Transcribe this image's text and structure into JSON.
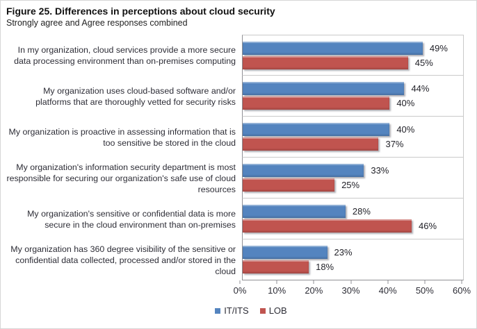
{
  "title": "Figure 25. Differences in perceptions about cloud security",
  "subtitle": "Strongly agree and Agree responses combined",
  "colors": {
    "it_its_bar": "#5484BF",
    "lob_bar": "#C0544F",
    "axis_line": "#8f8f94",
    "grid_divider": "#c9c9c9",
    "text": "#2d2d36"
  },
  "chart_data": {
    "type": "bar",
    "orientation": "horizontal",
    "title": "Figure 25. Differences in perceptions about cloud security",
    "subtitle": "Strongly agree and Agree responses combined",
    "categories": [
      "In my organization, cloud services provide a more secure data processing environment than on-premises computing",
      "My organization uses cloud-based software and/or platforms that are thoroughly vetted for security risks",
      "My organization is proactive in assessing information that is too sensitive be stored in the cloud",
      "My organization's information security department is most responsible for securing our organization's safe use of cloud resources",
      "My organization's sensitive or confidential data is more secure in the cloud environment than on-premises",
      "My organization has 360 degree visibility of the sensitive or confidential data collected, processed and/or stored in the cloud"
    ],
    "series": [
      {
        "name": "IT/ITS",
        "color": "#5484BF",
        "values": [
          49,
          44,
          40,
          33,
          28,
          23
        ],
        "labels": [
          "49%",
          "44%",
          "40%",
          "33%",
          "28%",
          "23%"
        ]
      },
      {
        "name": "LOB",
        "color": "#C0544F",
        "values": [
          45,
          40,
          37,
          25,
          46,
          18
        ],
        "labels": [
          "45%",
          "40%",
          "37%",
          "25%",
          "46%",
          "18%"
        ]
      }
    ],
    "xlim": [
      0,
      60
    ],
    "x_ticks": [
      "0%",
      "10%",
      "20%",
      "30%",
      "40%",
      "50%",
      "60%"
    ],
    "grid": "category-dividers",
    "legend_position": "bottom"
  }
}
